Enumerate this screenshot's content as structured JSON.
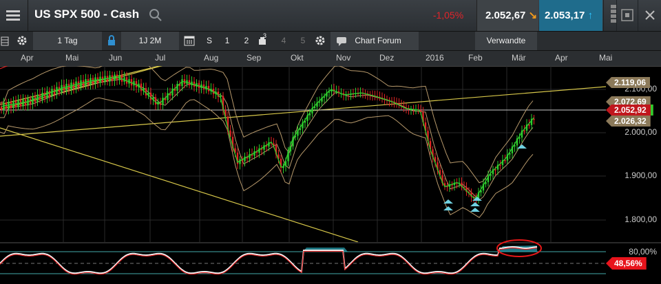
{
  "header": {
    "title": "US SPX 500 - Cash",
    "change": "-1,05%",
    "bid": "2.052,67",
    "ask": "2.053,17"
  },
  "toolbar": {
    "timeframe": "1 Tag",
    "range": "1J 2M",
    "s": "S",
    "b1": "1",
    "b2": "2",
    "b3sup": "3",
    "b4": "4",
    "b5": "5",
    "forum": "Chart Forum",
    "related": "Verwandte"
  },
  "x_axis": {
    "months": [
      "Apr",
      "Mai",
      "Jun",
      "Jul",
      "Aug",
      "Sep",
      "Okt",
      "Nov",
      "Dez",
      "2016",
      "Feb",
      "Mär",
      "Apr",
      "Mai"
    ]
  },
  "price_axis": {
    "ticks": [
      "2.100,00",
      "2.000,00",
      "1.900,00",
      "1.800,00"
    ],
    "labels": {
      "upper_band": "2.119,06",
      "mid_band": "2.072,69",
      "current": "2.052,92",
      "lower_band": "2.026,32"
    }
  },
  "oscillator": {
    "tick": "80,00%",
    "value": "48,56%"
  },
  "colors": {
    "negative": "#e0242a",
    "ask_bg": "#1f6c8c",
    "current_price": "#c0171d",
    "band_label": "#8c7a5a",
    "oscillator_value": "#e8141c",
    "candle_up": "#2ecc2e",
    "candle_down": "#e02424",
    "trendline": "#d8c84a"
  }
}
